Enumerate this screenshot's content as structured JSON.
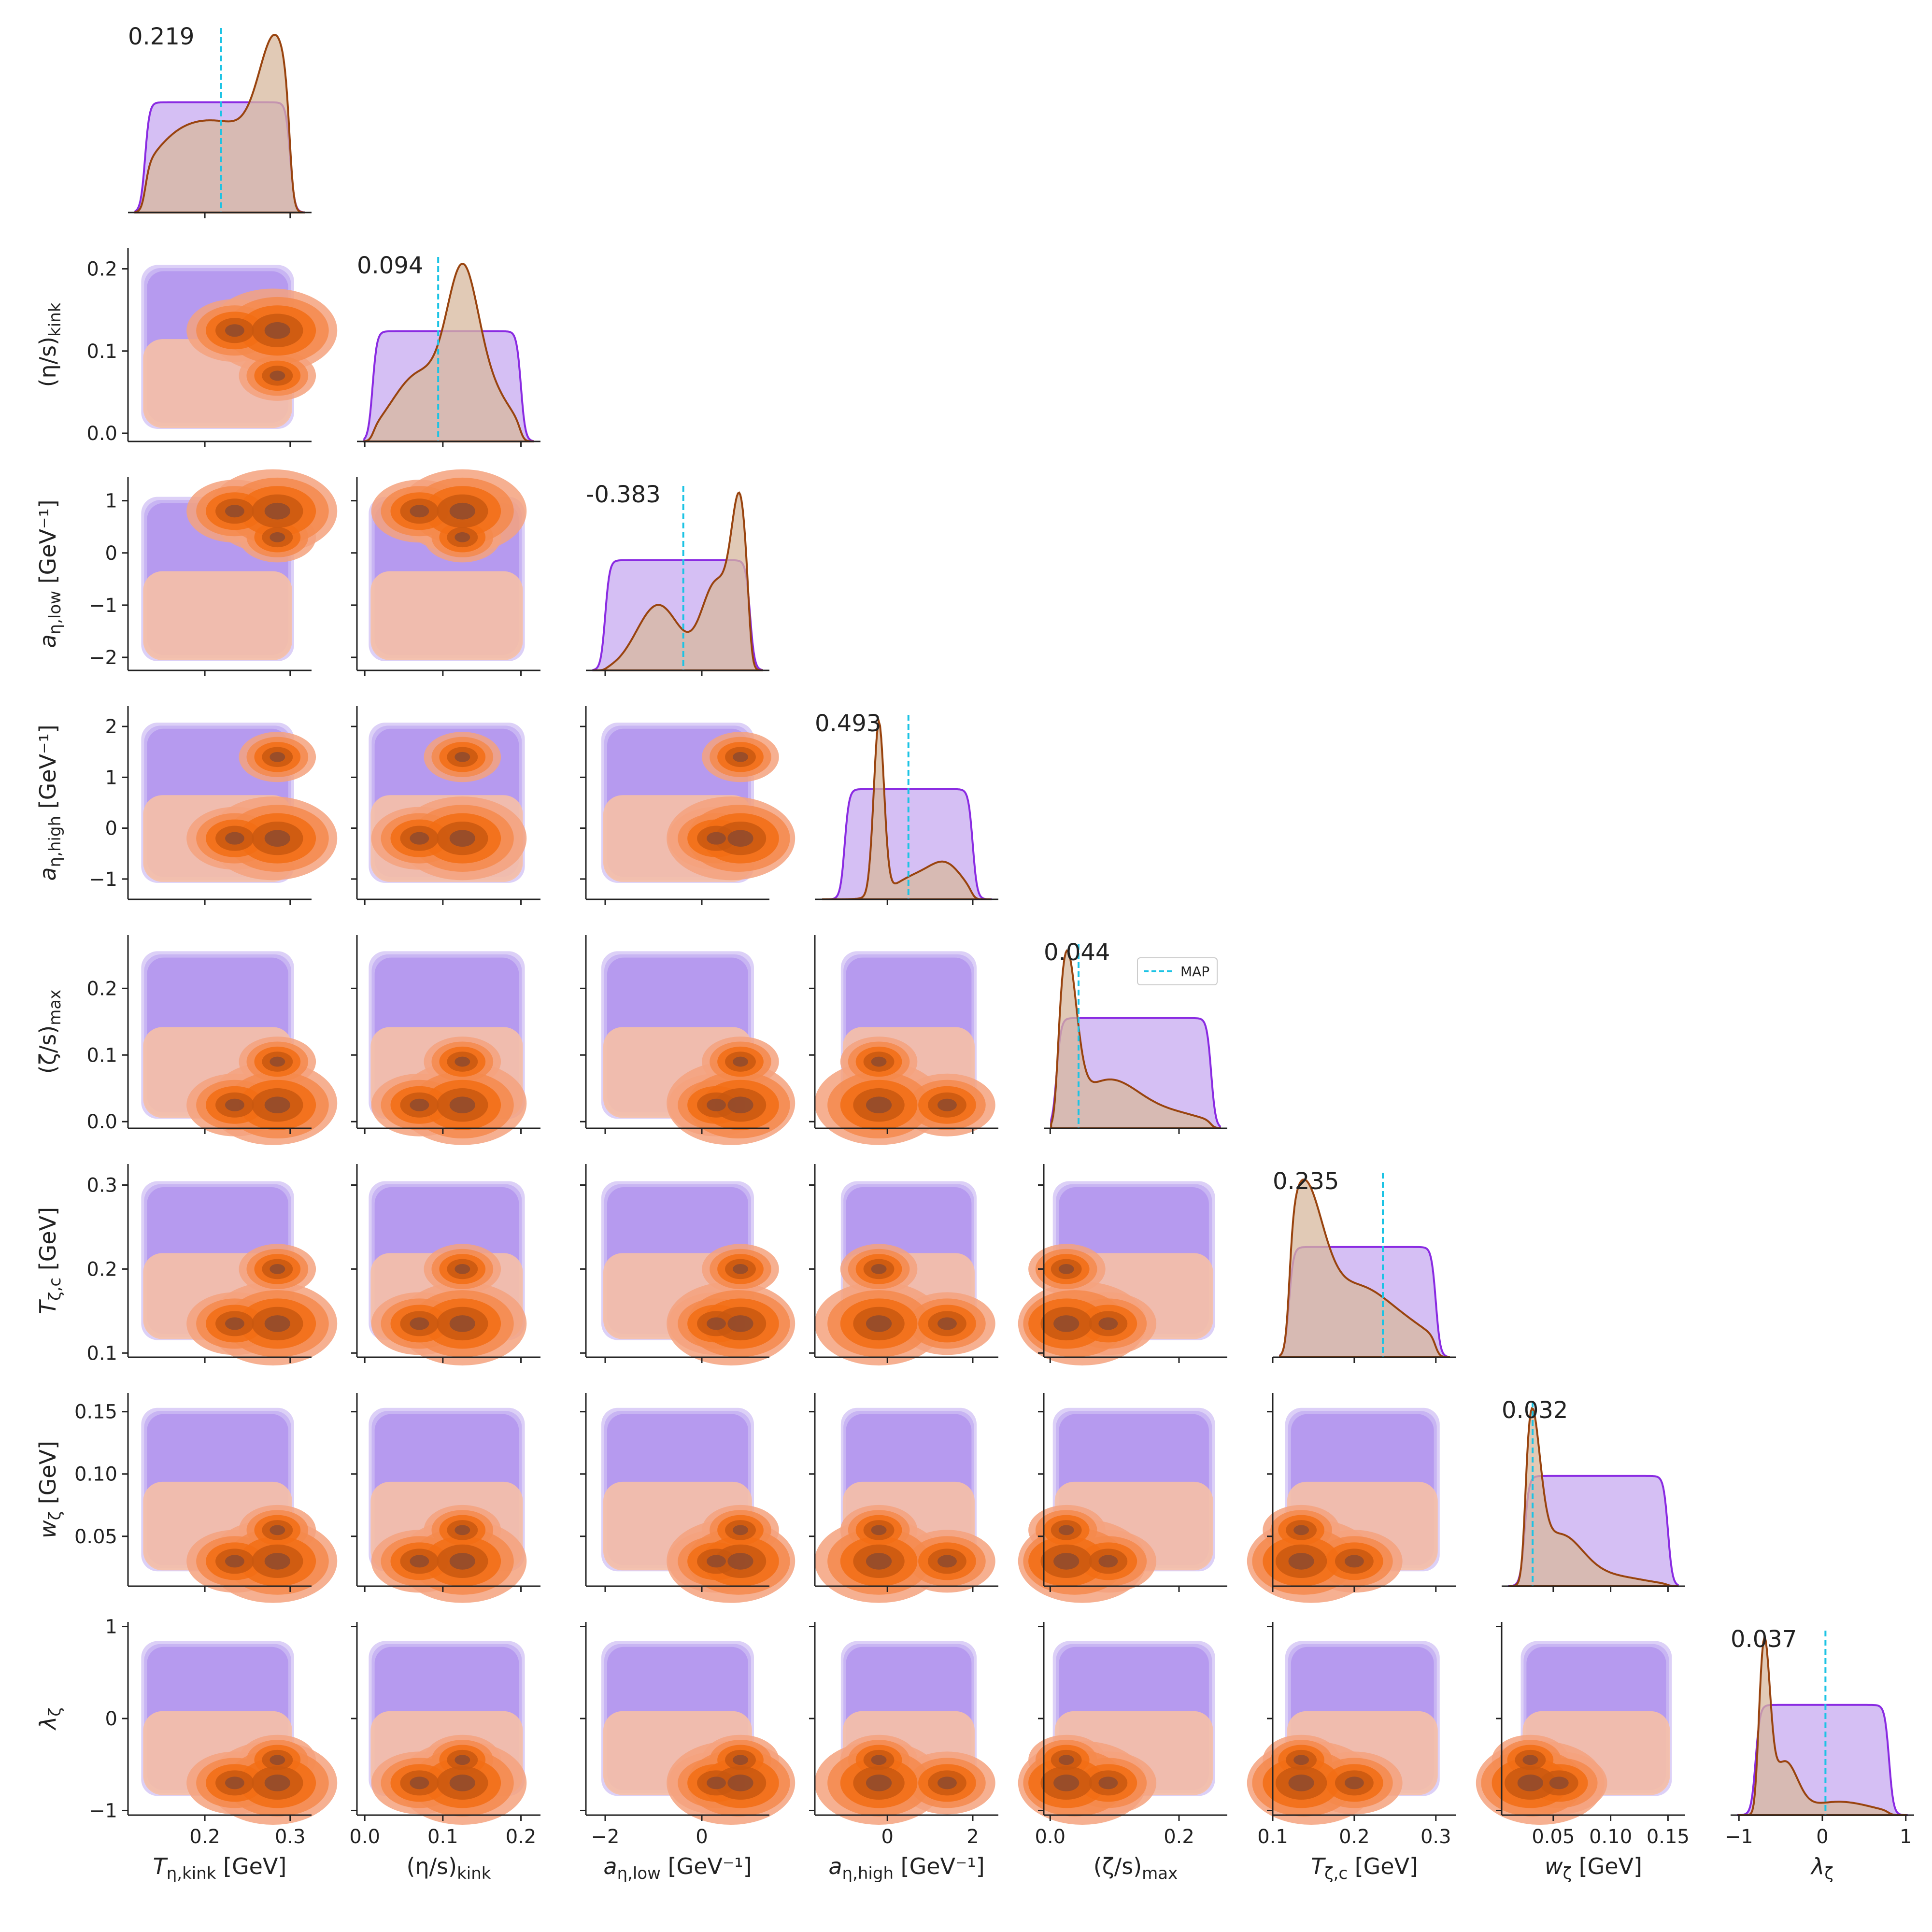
{
  "chart_data": {
    "type": "corner",
    "legend": {
      "label": "MAP",
      "placement": "upper-right of (ζ/s)max diagonal panel"
    },
    "colors": {
      "posterior_line": "#99440f",
      "posterior_fill": "#d7b89d",
      "prior_line": "#8a2be2",
      "prior_fill": "#c7aaf0",
      "map_line": "#1cc3e4",
      "contours_posterior": [
        "#f6c0a6",
        "#f4a27e",
        "#f58a4c",
        "#f26d14",
        "#c9580f",
        "#8f4a2e"
      ],
      "contours_prior": [
        "#d8cbf6",
        "#c5b1f2",
        "#b497ee"
      ]
    },
    "params": [
      {
        "key": "T_eta_kink",
        "label": "T_η,kink [GeV]",
        "range": [
          0.11,
          0.325
        ],
        "ticks": [
          0.2,
          0.3
        ],
        "tick_labels": [
          "0.2",
          "0.3"
        ],
        "prior": [
          0.13,
          0.3
        ],
        "map": 0.219,
        "map_label": "0.219",
        "posterior_peaks": [
          [
            0.285,
            1.0,
            0.02
          ],
          [
            0.235,
            0.6,
            0.05
          ],
          [
            0.16,
            0.4,
            0.04
          ]
        ]
      },
      {
        "key": "eta_s_kink",
        "label": "(η/s)kink",
        "range": [
          -0.01,
          0.225
        ],
        "ticks": [
          0.0,
          0.1,
          0.2
        ],
        "tick_labels": [
          "0.0",
          "0.1",
          "0.2"
        ],
        "prior": [
          0.01,
          0.2
        ],
        "map": 0.094,
        "map_label": "0.094",
        "posterior_peaks": [
          [
            0.125,
            1.0,
            0.02
          ],
          [
            0.07,
            0.5,
            0.035
          ],
          [
            0.16,
            0.35,
            0.03
          ]
        ]
      },
      {
        "key": "a_eta_low",
        "label": "a_η,low [GeV⁻¹]",
        "range": [
          -2.4,
          1.4
        ],
        "ticks": [
          -2,
          0
        ],
        "tick_labels": [
          "−2",
          "0"
        ],
        "prior": [
          -2,
          1
        ],
        "map": -0.383,
        "map_label": "-0.383",
        "posterior_peaks": [
          [
            0.8,
            1.0,
            0.18
          ],
          [
            0.3,
            0.55,
            0.3
          ],
          [
            -0.9,
            0.42,
            0.45
          ]
        ]
      },
      {
        "key": "a_eta_high",
        "label": "a_η,high [GeV⁻¹]",
        "range": [
          -1.7,
          2.6
        ],
        "ticks": [
          0,
          2
        ],
        "tick_labels": [
          "0",
          "2"
        ],
        "prior": [
          -1,
          2
        ],
        "map": 0.493,
        "map_label": "0.493",
        "posterior_peaks": [
          [
            -0.2,
            1.0,
            0.12
          ],
          [
            1.4,
            0.18,
            0.4
          ],
          [
            0.6,
            0.12,
            0.5
          ]
        ]
      },
      {
        "key": "zeta_s_max",
        "label": "(ζ/s)max",
        "range": [
          -0.01,
          0.275
        ],
        "ticks": [
          0.0,
          0.2
        ],
        "tick_labels": [
          "0.0",
          "0.2"
        ],
        "prior": [
          0.01,
          0.25
        ],
        "map": 0.044,
        "map_label": "0.044",
        "posterior_peaks": [
          [
            0.025,
            1.0,
            0.015
          ],
          [
            0.09,
            0.3,
            0.05
          ],
          [
            0.2,
            0.08,
            0.05
          ]
        ]
      },
      {
        "key": "T_zeta_c",
        "label": "T_ζ,c [GeV]",
        "range": [
          0.1,
          0.325
        ],
        "ticks": [
          0.1,
          0.2,
          0.3
        ],
        "tick_labels": [
          "0.1",
          "0.2",
          "0.3"
        ],
        "prior": [
          0.12,
          0.3
        ],
        "map": 0.235,
        "map_label": "0.235",
        "posterior_peaks": [
          [
            0.135,
            1.0,
            0.025
          ],
          [
            0.2,
            0.4,
            0.04
          ],
          [
            0.27,
            0.15,
            0.04
          ]
        ]
      },
      {
        "key": "w_zeta",
        "label": "w_ζ [GeV]",
        "range": [
          0.005,
          0.165
        ],
        "ticks": [
          0.05,
          0.1,
          0.15
        ],
        "tick_labels": [
          "0.05",
          "0.10",
          "0.15"
        ],
        "prior": [
          0.025,
          0.15
        ],
        "map": 0.032,
        "map_label": "0.032",
        "posterior_peaks": [
          [
            0.03,
            1.0,
            0.008
          ],
          [
            0.055,
            0.3,
            0.02
          ],
          [
            0.1,
            0.06,
            0.03
          ]
        ]
      },
      {
        "key": "lambda_zeta",
        "label": "λ_ζ",
        "range": [
          -1.1,
          1.1
        ],
        "ticks": [
          -1,
          0,
          1
        ],
        "tick_labels": [
          "−1",
          "0",
          "1"
        ],
        "prior": [
          -0.8,
          0.8
        ],
        "map": 0.037,
        "map_label": "0.037",
        "posterior_peaks": [
          [
            -0.7,
            1.0,
            0.07
          ],
          [
            -0.45,
            0.3,
            0.15
          ],
          [
            0.2,
            0.08,
            0.4
          ]
        ]
      }
    ],
    "y_tick_labels": {
      "eta_s_kink": {
        "ticks": [
          0.0,
          0.1,
          0.2
        ],
        "labels": [
          "0.0",
          "0.1",
          "0.2"
        ],
        "range": [
          -0.01,
          0.225
        ]
      },
      "a_eta_low": {
        "ticks": [
          -2,
          -1,
          0,
          1
        ],
        "labels": [
          "−2",
          "−1",
          "0",
          "1"
        ],
        "range": [
          -2.25,
          1.45
        ]
      },
      "a_eta_high": {
        "ticks": [
          -1,
          0,
          1,
          2
        ],
        "labels": [
          "−1",
          "0",
          "1",
          "2"
        ],
        "range": [
          -1.4,
          2.4
        ]
      },
      "zeta_s_max": {
        "ticks": [
          0.0,
          0.1,
          0.2
        ],
        "labels": [
          "0.0",
          "0.1",
          "0.2"
        ],
        "range": [
          -0.01,
          0.28
        ]
      },
      "T_zeta_c": {
        "ticks": [
          0.1,
          0.2,
          0.3
        ],
        "labels": [
          "0.1",
          "0.2",
          "0.3"
        ],
        "range": [
          0.095,
          0.325
        ]
      },
      "w_zeta": {
        "ticks": [
          0.05,
          0.1,
          0.15
        ],
        "labels": [
          "0.05",
          "0.10",
          "0.15"
        ],
        "range": [
          0.01,
          0.165
        ]
      },
      "lambda_zeta": {
        "ticks": [
          -1,
          0,
          1
        ],
        "labels": [
          "−1",
          "0",
          "1"
        ],
        "range": [
          -1.05,
          1.05
        ]
      }
    },
    "grid": false
  }
}
